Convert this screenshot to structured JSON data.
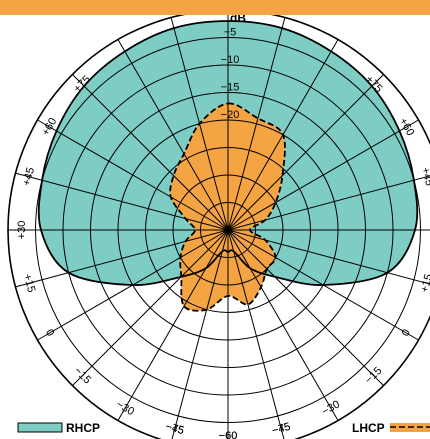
{
  "chart_data": {
    "type": "polar",
    "radial_unit": "dB",
    "radial_ticks": [
      -5,
      -10,
      -15,
      -20
    ],
    "radial_ticks_labels": [
      "−5",
      "−10",
      "−15",
      "−20"
    ],
    "rings_db": [
      0,
      -5,
      -10,
      -15,
      -20,
      -25,
      -30,
      -35
    ],
    "radial_range_db": [
      -40,
      0
    ],
    "angle_tick_labels": [
      "+75",
      "+60",
      "+45",
      "+30",
      "+15",
      "0",
      "−15",
      "−30",
      "−45",
      "−60",
      "−75"
    ],
    "angular_gridline_step_deg": 15,
    "grid": true,
    "legend_position": "bottom",
    "colors": {
      "rhcp": "#7ecdc4",
      "lhcp": "#f5a444",
      "header": "#f5a444",
      "grid": "#000000"
    },
    "series": [
      {
        "name": "RHCP",
        "line_style": "solid",
        "angles_deg": [
          0,
          15,
          30,
          45,
          60,
          75,
          90,
          105,
          120,
          135,
          150,
          165,
          180,
          195,
          210,
          225,
          240,
          255,
          270,
          285,
          300,
          315,
          330,
          345
        ],
        "values_db": [
          -2,
          -2,
          -2.5,
          -3,
          -4,
          -5,
          -6,
          -10,
          -20,
          -28,
          -32,
          -36,
          -36,
          -36,
          -32,
          -28,
          -20,
          -10,
          -6,
          -5,
          -4,
          -3,
          -2.5,
          -2
        ]
      },
      {
        "name": "LHCP",
        "line_style": "dashed",
        "angles_deg": [
          0,
          15,
          30,
          45,
          60,
          75,
          90,
          105,
          120,
          135,
          150,
          165,
          180,
          195,
          210,
          225,
          240,
          255,
          270,
          285,
          300,
          315,
          330,
          345
        ],
        "values_db": [
          -17,
          -19,
          -20,
          -26,
          -30,
          -33,
          -36,
          -33,
          -30,
          -30,
          -28,
          -26,
          -28,
          -25,
          -24,
          -28,
          -30,
          -32,
          -34,
          -32,
          -28,
          -26,
          -24,
          -20
        ]
      }
    ]
  }
}
